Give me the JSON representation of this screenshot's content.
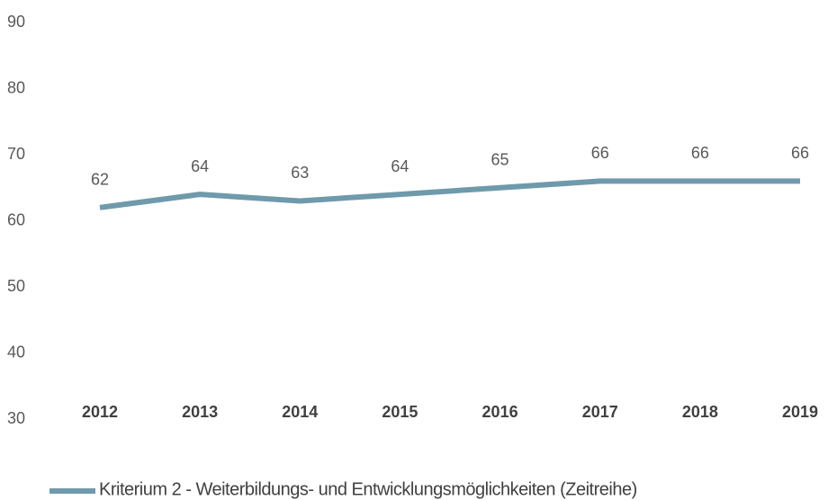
{
  "chart_data": {
    "type": "line",
    "categories": [
      "2012",
      "2013",
      "2014",
      "2015",
      "2016",
      "2017",
      "2018",
      "2019"
    ],
    "series": [
      {
        "name": "Kriterium 2 - Weiterbildungs- und Entwicklungsmöglichkeiten (Zeitreihe)",
        "color": "#6f9aab",
        "values": [
          62,
          64,
          63,
          64,
          65,
          66,
          66,
          66
        ]
      }
    ],
    "ylim": [
      30,
      90
    ],
    "yticks": [
      30,
      40,
      50,
      60,
      70,
      80,
      90
    ],
    "grid": false,
    "legend": "bottom"
  }
}
